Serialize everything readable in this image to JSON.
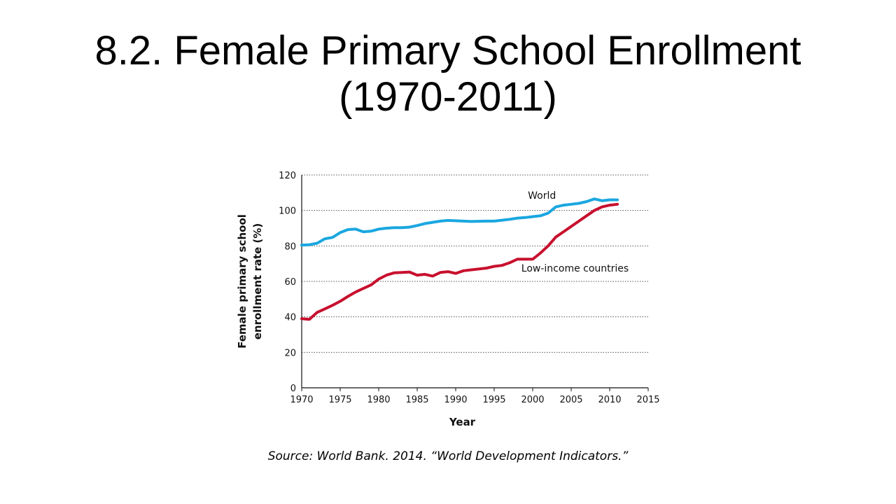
{
  "slide": {
    "title_line1": "8.2. Female Primary School Enrollment",
    "title_line2": "(1970-2011)",
    "source": "Source: World Bank. 2014. “World Development Indicators.”"
  },
  "chart_data": {
    "type": "line",
    "title": "",
    "xlabel": "Year",
    "ylabel_lines": [
      "Female primary school",
      "enrollment rate (%)"
    ],
    "xlim": [
      1970,
      2015
    ],
    "ylim": [
      0,
      120
    ],
    "xticks": [
      1970,
      1975,
      1980,
      1985,
      1990,
      1995,
      2000,
      2005,
      2010,
      2015
    ],
    "yticks": [
      0,
      20,
      40,
      60,
      80,
      100,
      120
    ],
    "grid": "horizontal dotted",
    "series": [
      {
        "name": "World",
        "color": "#1aa7e0",
        "x": [
          1970,
          1971,
          1972,
          1973,
          1974,
          1975,
          1976,
          1977,
          1978,
          1979,
          1980,
          1981,
          1982,
          1983,
          1984,
          1985,
          1986,
          1987,
          1988,
          1989,
          1990,
          1991,
          1992,
          1993,
          1994,
          1995,
          1996,
          1997,
          1998,
          1999,
          2000,
          2001,
          2002,
          2003,
          2004,
          2005,
          2006,
          2007,
          2008,
          2009,
          2010,
          2011
        ],
        "y": [
          80.5,
          80.7,
          81.5,
          84.0,
          84.8,
          87.5,
          89.2,
          89.5,
          88.0,
          88.3,
          89.5,
          90.0,
          90.3,
          90.3,
          90.6,
          91.5,
          92.6,
          93.3,
          94.0,
          94.4,
          94.2,
          94.0,
          93.8,
          93.9,
          94.0,
          94.0,
          94.5,
          95.0,
          95.7,
          96.0,
          96.5,
          97.0,
          98.5,
          102.0,
          103.0,
          103.5,
          104.0,
          105.0,
          106.5,
          105.5,
          106.0,
          106.0
        ]
      },
      {
        "name": "Low-income countries",
        "color": "#c8102e",
        "x": [
          1970,
          1971,
          1972,
          1973,
          1974,
          1975,
          1976,
          1977,
          1978,
          1979,
          1980,
          1981,
          1982,
          1983,
          1984,
          1985,
          1986,
          1987,
          1988,
          1989,
          1990,
          1991,
          1992,
          1993,
          1994,
          1995,
          1996,
          1997,
          1998,
          1999,
          2000,
          2001,
          2002,
          2003,
          2004,
          2005,
          2006,
          2007,
          2008,
          2009,
          2010,
          2011
        ],
        "y": [
          39.0,
          38.6,
          42.5,
          44.5,
          46.5,
          48.8,
          51.5,
          54.0,
          56.0,
          58.0,
          61.3,
          63.5,
          64.8,
          65.0,
          65.3,
          63.5,
          64.0,
          63.0,
          65.0,
          65.5,
          64.5,
          66.0,
          66.5,
          67.0,
          67.5,
          68.5,
          69.0,
          70.5,
          72.5,
          72.5,
          72.5,
          76.0,
          80.0,
          85.0,
          88.0,
          91.0,
          94.0,
          97.0,
          100.0,
          102.0,
          103.0,
          103.5
        ]
      }
    ]
  }
}
